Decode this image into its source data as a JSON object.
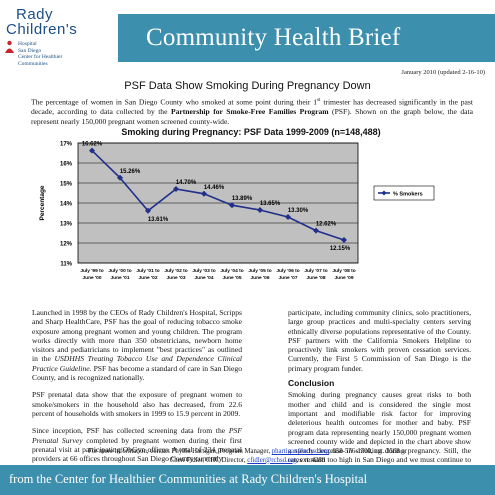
{
  "logo": {
    "line1": "Rady",
    "line2": "Children's",
    "sub": [
      "Hospital",
      "San Diego",
      "Center for Healthier",
      "Communities"
    ]
  },
  "banner_title": "Community Health Brief",
  "dateline": "January 2010 (updated 2-16-10)",
  "doc_title": "PSF Data Show Smoking During Pregnancy Down",
  "intro": {
    "p1": "The percentage of women in San Diego County who smoked at some point during their 1",
    "sup": "st",
    "p2": " trimester has decreased significantly in the past decade, according to data collected by the ",
    "bold": "Partnership for Smoke-Free Families Program",
    "p3": " (PSF). Shown on the graph below, the data represent nearly 150,000 pregnant women screened county-wide."
  },
  "chart_data": {
    "type": "line",
    "title": "Smoking during Pregnancy:  PSF Data 1999-2009 (n=148,488)",
    "ylabel": "Percentage",
    "xlabel": "",
    "ylim": [
      11,
      17
    ],
    "yticks": [
      "11%",
      "12%",
      "13%",
      "14%",
      "15%",
      "16%",
      "17%"
    ],
    "categories": [
      "July '99 to June '00",
      "July '00 to June '01",
      "July '01 to June '02",
      "July '02 to June '03",
      "July '03 to June '04",
      "July '04 to June '05",
      "July '05 to June '06",
      "July '06 to June '07",
      "July '07 to June '08",
      "July '08 to June '09"
    ],
    "category_lines": [
      [
        "July '99 to",
        "June '00"
      ],
      [
        "July '00 to",
        "June '01"
      ],
      [
        "July '01 to",
        "June '02"
      ],
      [
        "July '02 to",
        "June '03"
      ],
      [
        "July '03 to",
        "June '04"
      ],
      [
        "July '04 to",
        "June '05"
      ],
      [
        "July '05 to",
        "June '06"
      ],
      [
        "July '06 to",
        "June '07"
      ],
      [
        "July '07 to",
        "June '08"
      ],
      [
        "July '08 to",
        "June '09"
      ]
    ],
    "series": [
      {
        "name": "% Smokers",
        "values": [
          16.62,
          15.26,
          13.61,
          14.7,
          14.46,
          13.89,
          13.65,
          13.3,
          12.62,
          12.15
        ],
        "labels": [
          "16.62%",
          "15.26%",
          "13.61%",
          "14.70%",
          "14.46%",
          "13.89%",
          "13.65%",
          "13.30%",
          "12.62%",
          "12.15%"
        ]
      }
    ],
    "grid": true,
    "legend": "right",
    "colors": {
      "line": "#1f2f8a",
      "plot_bg": "#c0c0c0",
      "grid": "#000000"
    }
  },
  "left_col": {
    "p1": "Launched in 1998 by the CEOs of Rady Children's Hospital, Scripps and Sharp HealthCare, PSF has the goal of reducing tobacco smoke exposure among pregnant women and young children. The program works directly with more than 350 obstetricians, newborn home visitors and pediatricians to implement \"best practices\" as outlined in the ",
    "p1_italic": "USDHHS Treating Tobacco Use and Dependence Clinical Practice Guideline.",
    "p1_end": " PSF has become a standard of care in San Diego County, and is recognized nationally.",
    "p2": "PSF prenatal data show that the exposure of pregnant women to smoke/smokers in the household also has decreased, from 22.6 percent of households with smokers in 1999 to 15.9 percent in 2009.",
    "p3a": "Since inception, PSF has collected screening data from the ",
    "p3_italic": "PSF Prenatal Survey",
    "p3b": " completed by pregnant women during their first prenatal visit at participating ObGyn offices. A total of 234 prenatal providers at 66 offices throughout San Diego County currently"
  },
  "right_col": {
    "p1": "participate, including community clinics, solo practitioners, large group practices and multi-specialty centers serving ethnically diverse populations representative of the County. PSF partners with the California Smokers Helpline to proactively link smokers with proven cessation services. Currently, the First 5 Commission of San Diego is the primary program funder.",
    "heading": "Conclusion",
    "p2": "Smoking during pregnancy causes great risks to both mother and child and is considered the single most important and modifiable risk factor for improving deleterious health outcomes for mother and baby. PSF program data representing nearly 150,000 pregnant women screened county wide and depicted in the chart above show a steady decrease in smoking during pregnancy. Still, the rates remain too high in San Diego and we must continue to implement these proven best practice recommendations to address this important issue."
  },
  "contact": {
    "line1a": "For more information, contact Phyllis Hartigan, Program Manager, ",
    "email1": "phartigan@rchsd.org",
    "line1b": ", 858-576-1700, ext. 3568 or",
    "line2a": "Cheri Fidler, CHC Director, ",
    "email2": "cfidler@rchsd.org",
    "line2b": ", ext. 4389"
  },
  "footer": "from the Center for Healthier Communities at Rady Children's Hospital"
}
